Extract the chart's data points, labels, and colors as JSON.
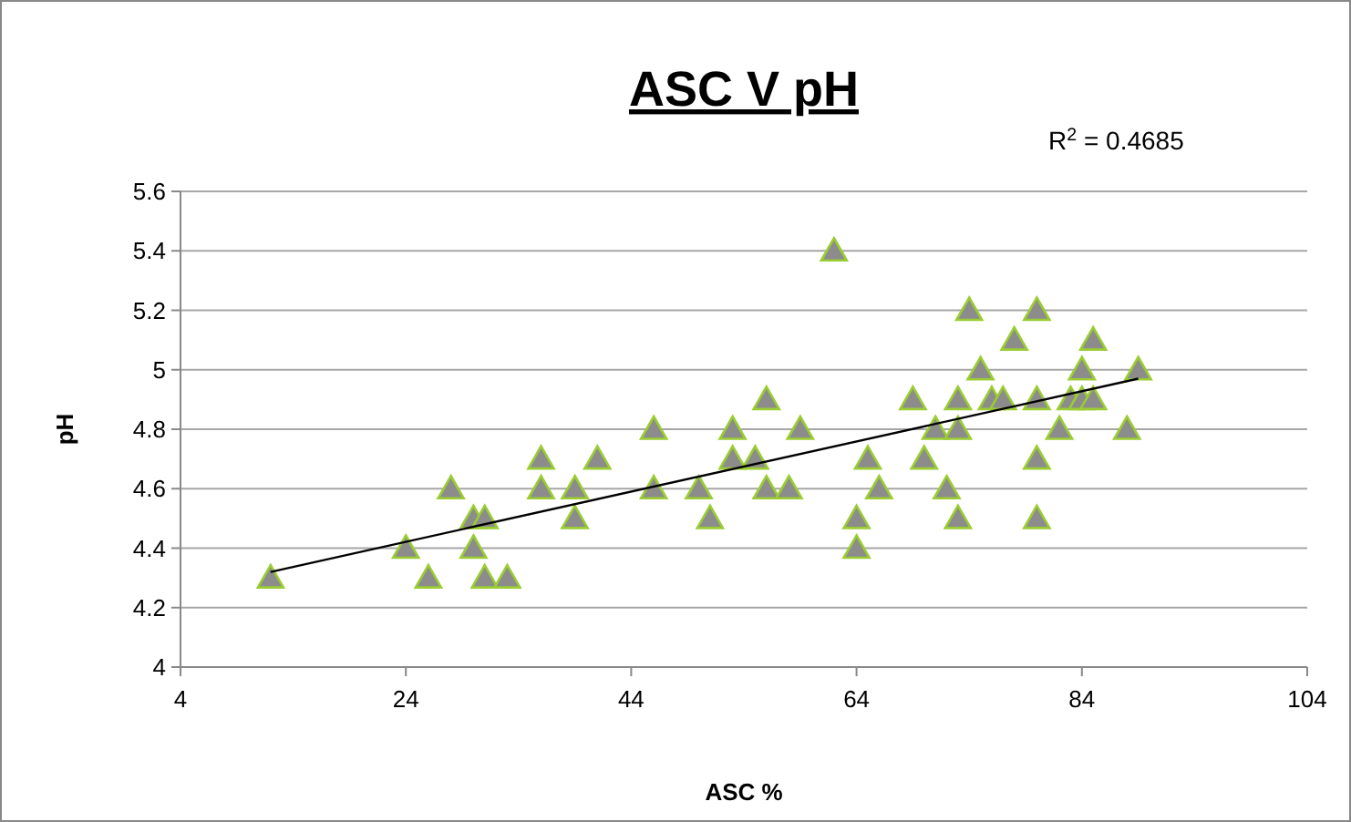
{
  "chart_data": {
    "type": "scatter",
    "title": "ASC V pH",
    "xlabel": "ASC %",
    "ylabel": "pH",
    "annotations": [
      "R$^{2}$ = 0.4685"
    ],
    "xlim": [
      4,
      104
    ],
    "xticks": [
      4,
      24,
      44,
      64,
      84,
      104
    ],
    "ylim": [
      4,
      5.6
    ],
    "yticks": [
      4,
      {
        "value": 4.2,
        "label": "4.2"
      },
      {
        "value": 4.4,
        "label": "4.4"
      },
      {
        "value": 4.6,
        "label": "4.6"
      },
      {
        "value": 4.8,
        "label": "4.8"
      },
      5,
      {
        "value": 5.2,
        "label": "5.2"
      },
      {
        "value": 5.4,
        "label": "5.4"
      },
      {
        "value": 5.6,
        "label": "5.6"
      }
    ],
    "grid": "y",
    "series": [
      {
        "color": "#8c8c8c",
        "marker": "triangle",
        "x": [
          12,
          24,
          26,
          28,
          30,
          30,
          31,
          31,
          33,
          36,
          36,
          39,
          39,
          41,
          46,
          46,
          50,
          51,
          53,
          53,
          55,
          56,
          56,
          58,
          59,
          62,
          64,
          64,
          65,
          66,
          69,
          70,
          71,
          72,
          73,
          73,
          73,
          74,
          75,
          76,
          77,
          78,
          80,
          80,
          80,
          80,
          82,
          83,
          84,
          84,
          85,
          85,
          88,
          89
        ],
        "values": [
          4.3,
          4.4,
          4.3,
          4.6,
          4.4,
          4.5,
          4.5,
          4.3,
          4.3,
          4.7,
          4.6,
          4.6,
          4.5,
          4.7,
          4.8,
          4.6,
          4.6,
          4.5,
          4.8,
          4.7,
          4.7,
          4.9,
          4.6,
          4.6,
          4.8,
          5.4,
          4.5,
          4.4,
          4.7,
          4.6,
          4.9,
          4.7,
          4.8,
          4.6,
          4.8,
          4.9,
          4.5,
          5.2,
          5.0,
          4.9,
          4.9,
          5.1,
          5.2,
          4.9,
          4.7,
          4.5,
          4.8,
          4.9,
          5.0,
          4.9,
          5.1,
          4.9,
          4.8,
          5.0
        ]
      },
      {
        "type": "line",
        "color": "#000000",
        "x": [
          12,
          89
        ],
        "values": [
          4.32,
          4.97
        ]
      }
    ]
  }
}
